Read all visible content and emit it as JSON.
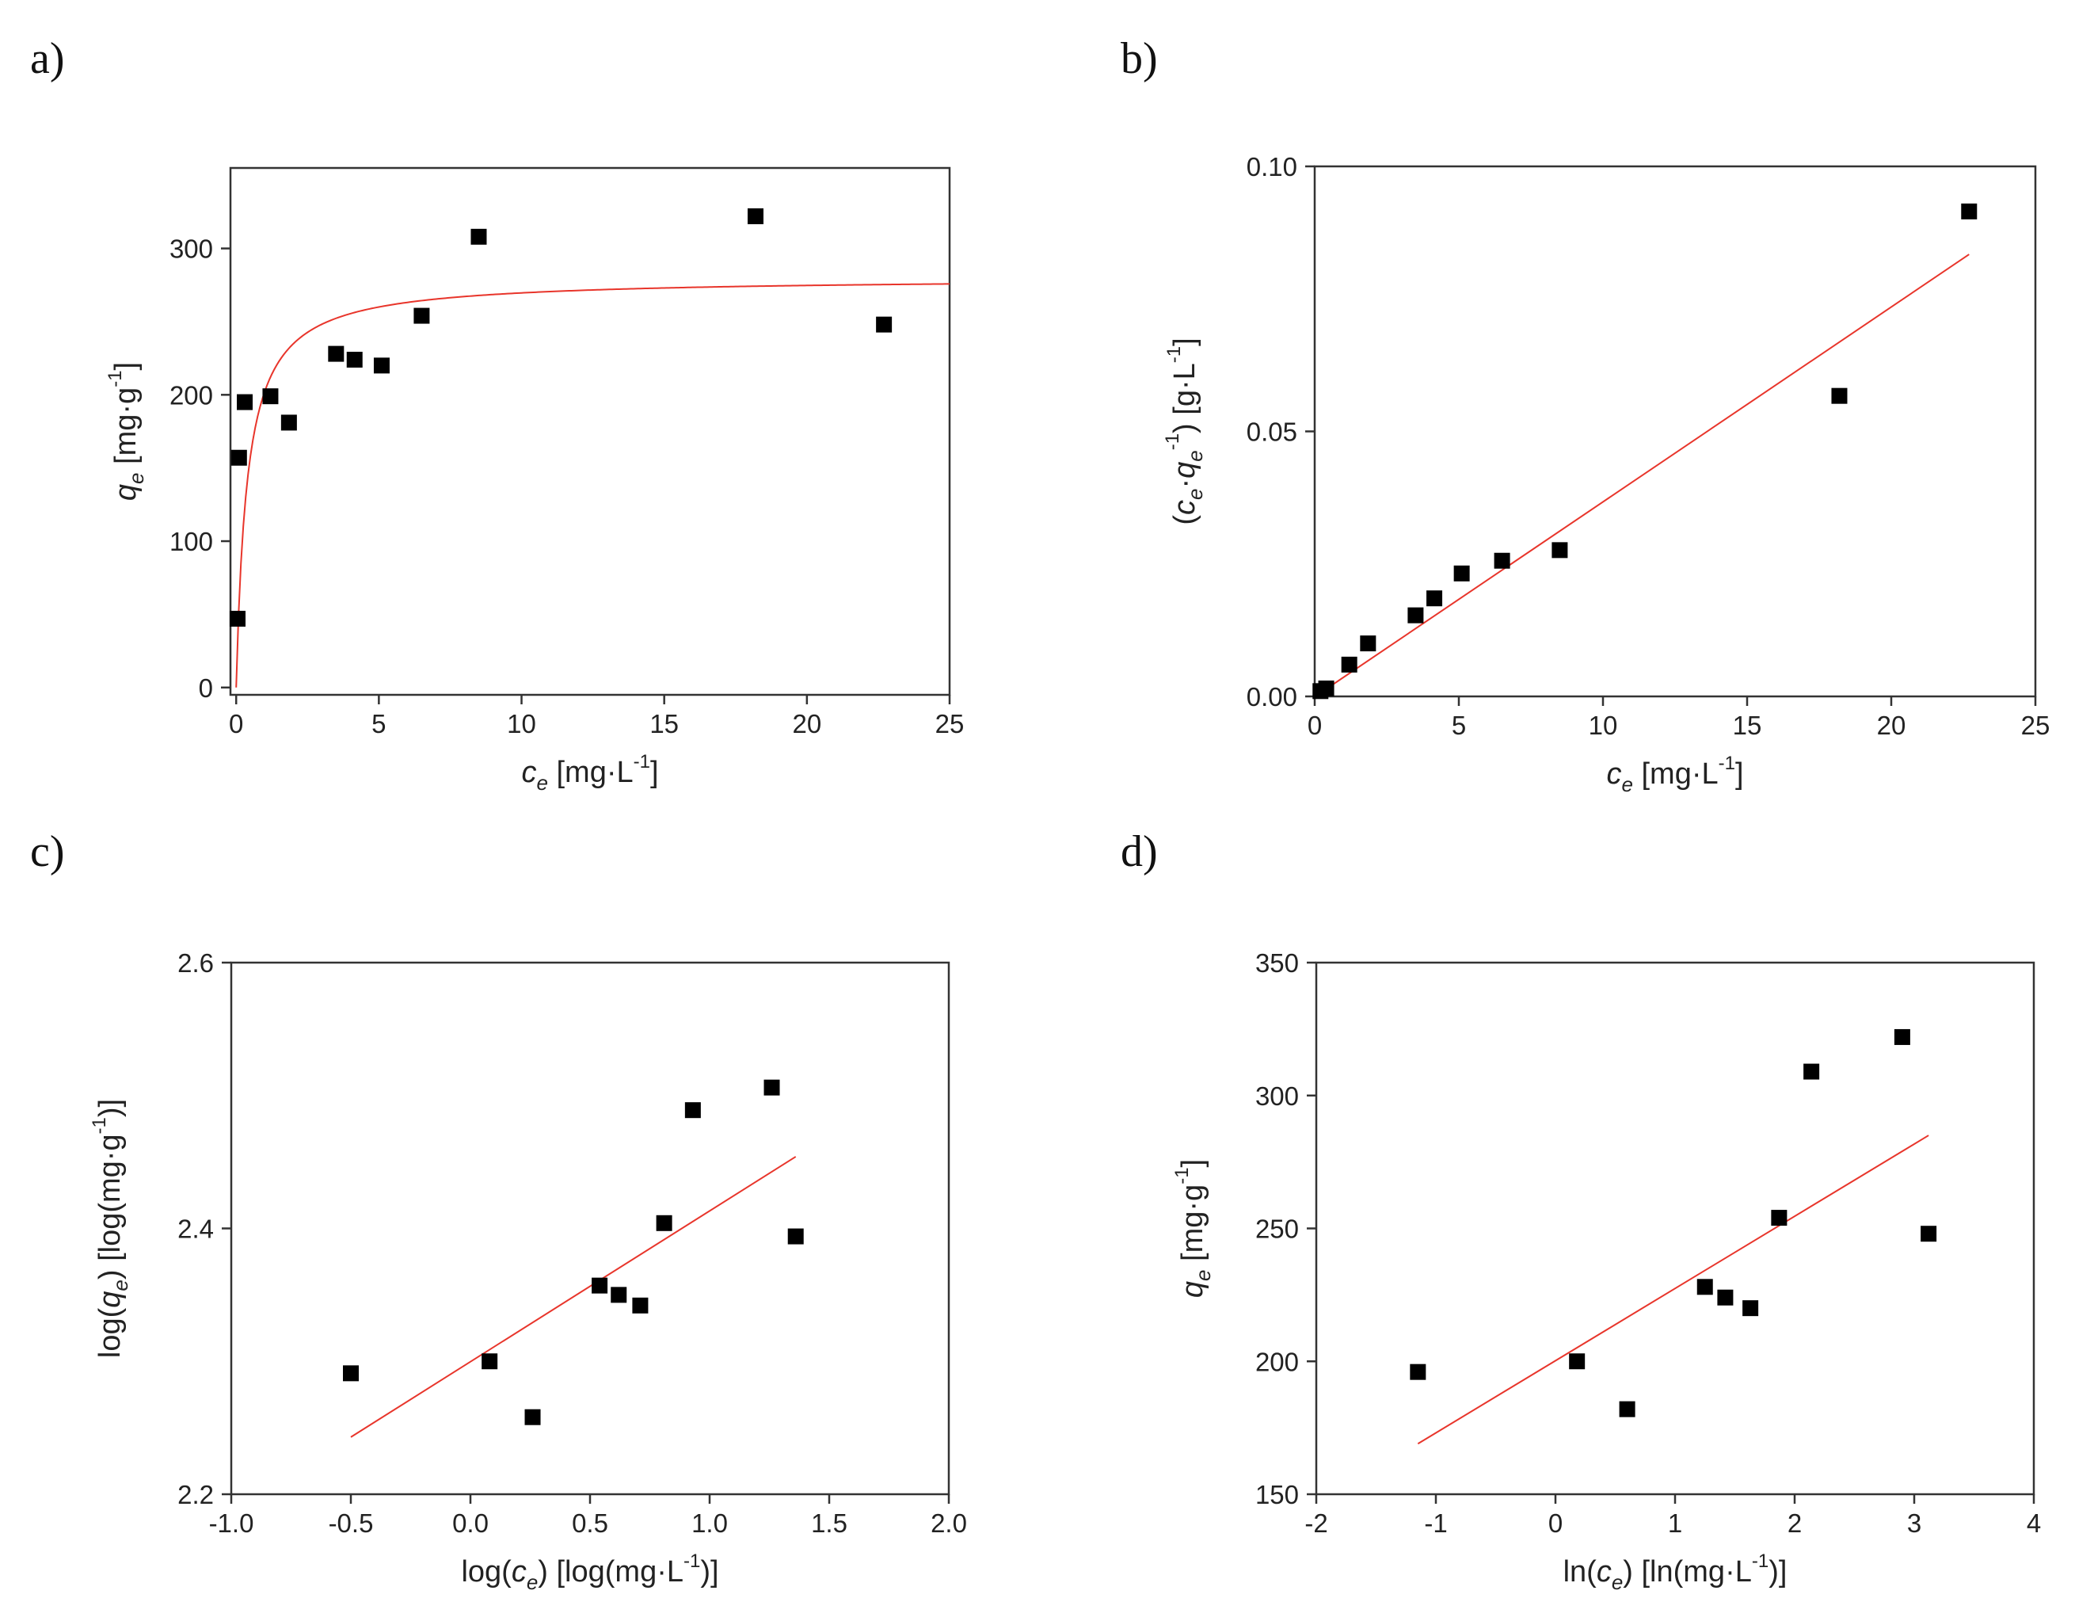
{
  "chart_data": [
    {
      "panel": "a)",
      "type": "scatter",
      "xlabel": {
        "main": "c",
        "sub": "e",
        "unit": " [mg·L",
        "sup": "-1",
        "close": "]"
      },
      "ylabel": {
        "main": "q",
        "sub": "e",
        "unit": " [mg·g",
        "sup": "-1",
        "close": "]"
      },
      "xlim": [
        -0.2,
        25
      ],
      "ylim": [
        -5,
        355
      ],
      "xticks": [
        0,
        5,
        10,
        15,
        20,
        25
      ],
      "xtick_labels": [
        "0",
        "5",
        "10",
        "15",
        "20",
        "25"
      ],
      "yticks": [
        0,
        100,
        200,
        300
      ],
      "ytick_labels": [
        "0",
        "100",
        "200",
        "300"
      ],
      "series": [
        {
          "name": "data",
          "kind": "points",
          "points": [
            [
              0.05,
              47
            ],
            [
              0.1,
              157
            ],
            [
              0.3,
              195
            ],
            [
              1.2,
              199
            ],
            [
              1.85,
              181
            ],
            [
              3.5,
              228
            ],
            [
              4.15,
              224
            ],
            [
              5.1,
              220
            ],
            [
              6.5,
              254
            ],
            [
              8.5,
              308
            ],
            [
              18.2,
              322
            ],
            [
              22.7,
              248
            ]
          ]
        },
        {
          "name": "Langmuir fit",
          "kind": "curve",
          "color": "#e8352b",
          "model": "langmuir",
          "qmax": 280,
          "KL": 2.6,
          "xrange": [
            0,
            25
          ]
        }
      ]
    },
    {
      "panel": "b)",
      "type": "scatter",
      "xlabel": {
        "main": "c",
        "sub": "e",
        "unit": " [mg·L",
        "sup": "-1",
        "close": "]"
      },
      "ylabel": {
        "prefix": "(",
        "main": "c",
        "sub": "e",
        "mid": "·",
        "main2": "q",
        "sub2": "e",
        "sup2": "-1",
        "unit": ") [g·L",
        "sup": "-1",
        "close": "]"
      },
      "xlim": [
        0,
        25
      ],
      "ylim": [
        0,
        0.1
      ],
      "xticks": [
        0,
        5,
        10,
        15,
        20,
        25
      ],
      "xtick_labels": [
        "0",
        "5",
        "10",
        "15",
        "20",
        "25"
      ],
      "yticks": [
        0,
        0.05,
        0.1
      ],
      "ytick_labels": [
        "0.00",
        "0.05",
        "0.10"
      ],
      "series": [
        {
          "name": "data",
          "kind": "points",
          "points": [
            [
              0.2,
              0.001
            ],
            [
              0.4,
              0.0015
            ],
            [
              1.2,
              0.006
            ],
            [
              1.85,
              0.01
            ],
            [
              3.5,
              0.0153
            ],
            [
              4.15,
              0.0185
            ],
            [
              5.1,
              0.0232
            ],
            [
              6.5,
              0.0256
            ],
            [
              8.5,
              0.0276
            ],
            [
              18.2,
              0.0567
            ],
            [
              22.7,
              0.0915
            ]
          ]
        },
        {
          "name": "linear fit",
          "kind": "line",
          "color": "#e8352b",
          "points": [
            [
              0.1,
              0.0003
            ],
            [
              22.7,
              0.0834
            ]
          ]
        }
      ]
    },
    {
      "panel": "c)",
      "type": "scatter",
      "xlabel": {
        "prefix": "log(",
        "main": "c",
        "sub": "e",
        "unit": ") [log(mg·L",
        "sup": "-1",
        "close": ")]"
      },
      "ylabel": {
        "prefix": "log(",
        "main": "q",
        "sub": "e",
        "unit": ") [log(mg·g",
        "sup": "-1",
        "close": ")]"
      },
      "xlim": [
        -1,
        2
      ],
      "ylim": [
        2.2,
        2.6
      ],
      "xticks": [
        -1,
        -0.5,
        0,
        0.5,
        1,
        1.5,
        2
      ],
      "xtick_labels": [
        "-1.0",
        "-0.5",
        "0.0",
        "0.5",
        "1.0",
        "1.5",
        "2.0"
      ],
      "yticks": [
        2.2,
        2.4,
        2.6
      ],
      "ytick_labels": [
        "2.2",
        "2.4",
        "2.6"
      ],
      "series": [
        {
          "name": "data",
          "kind": "points",
          "points": [
            [
              -0.5,
              2.291
            ],
            [
              0.08,
              2.3
            ],
            [
              0.26,
              2.258
            ],
            [
              0.54,
              2.357
            ],
            [
              0.62,
              2.35
            ],
            [
              0.71,
              2.342
            ],
            [
              0.81,
              2.404
            ],
            [
              0.93,
              2.489
            ],
            [
              1.26,
              2.506
            ],
            [
              1.36,
              2.394
            ]
          ]
        },
        {
          "name": "linear fit",
          "kind": "line",
          "color": "#e8352b",
          "points": [
            [
              -0.5,
              2.243
            ],
            [
              1.36,
              2.454
            ]
          ]
        }
      ]
    },
    {
      "panel": "d)",
      "type": "scatter",
      "xlabel": {
        "prefix": "ln(",
        "main": "c",
        "sub": "e",
        "unit": ") [ln(mg·L",
        "sup": "-1",
        "close": ")]"
      },
      "ylabel": {
        "main": "q",
        "sub": "e",
        "unit": " [mg·g",
        "sup": "-1",
        "close": "]"
      },
      "xlim": [
        -2,
        4
      ],
      "ylim": [
        150,
        350
      ],
      "xticks": [
        -2,
        -1,
        0,
        1,
        2,
        3,
        4
      ],
      "xtick_labels": [
        "-2",
        "-1",
        "0",
        "1",
        "2",
        "3",
        "4"
      ],
      "yticks": [
        150,
        200,
        250,
        300,
        350
      ],
      "ytick_labels": [
        "150",
        "200",
        "250",
        "300",
        "350"
      ],
      "series": [
        {
          "name": "data",
          "kind": "points",
          "points": [
            [
              -1.15,
              196
            ],
            [
              0.18,
              200
            ],
            [
              0.6,
              182
            ],
            [
              1.25,
              228
            ],
            [
              1.42,
              224
            ],
            [
              1.63,
              220
            ],
            [
              1.87,
              254
            ],
            [
              2.14,
              309
            ],
            [
              2.9,
              322
            ],
            [
              3.12,
              248
            ]
          ]
        },
        {
          "name": "linear fit",
          "kind": "line",
          "color": "#e8352b",
          "points": [
            [
              -1.15,
              169
            ],
            [
              3.12,
              285
            ]
          ]
        }
      ]
    }
  ]
}
